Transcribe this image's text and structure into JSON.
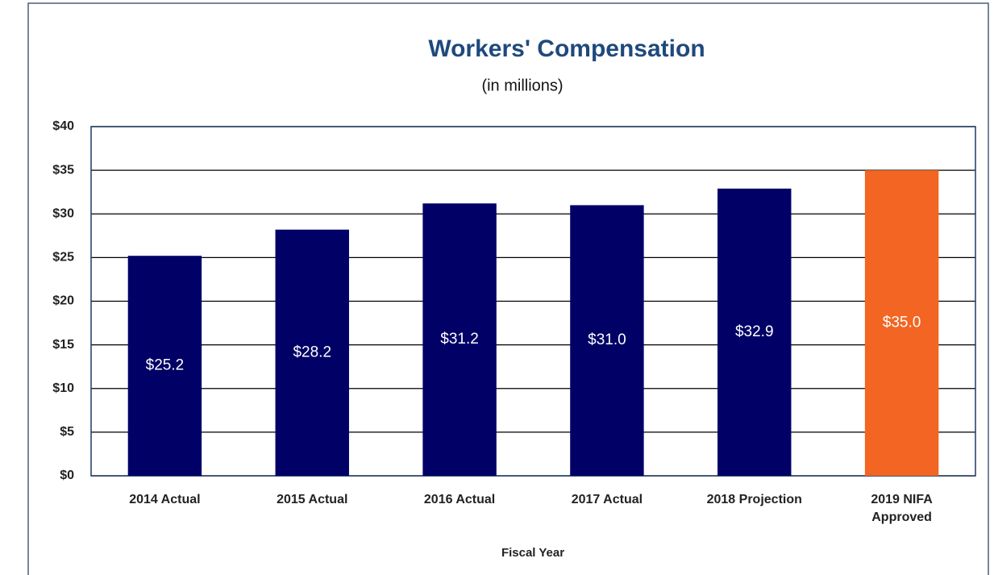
{
  "chart_data": {
    "type": "bar",
    "title": "Workers' Compensation",
    "subtitle": "(in millions)",
    "x_label": "Fiscal Year",
    "categories": [
      "2014 Actual",
      "2015 Actual",
      "2016 Actual",
      "2017 Actual",
      "2018 Projection",
      "2019 NIFA Approved"
    ],
    "values": [
      25.2,
      28.2,
      31.2,
      31.0,
      32.9,
      35.0
    ],
    "value_labels": [
      "$25.2",
      "$28.2",
      "$31.2",
      "$31.0",
      "$32.9",
      "$35.0"
    ],
    "colors": [
      "#000066",
      "#000066",
      "#000066",
      "#000066",
      "#000066",
      "#f26522"
    ],
    "ylim": [
      0,
      40
    ],
    "yticks": [
      {
        "value": 0,
        "label": "$0"
      },
      {
        "value": 5,
        "label": "$5"
      },
      {
        "value": 10,
        "label": "$10"
      },
      {
        "value": 15,
        "label": "$15"
      },
      {
        "value": 20,
        "label": "$20"
      },
      {
        "value": 25,
        "label": "$25"
      },
      {
        "value": 30,
        "label": "$30"
      },
      {
        "value": 35,
        "label": "$35"
      },
      {
        "value": 40,
        "label": "$40"
      }
    ],
    "grid": true
  }
}
